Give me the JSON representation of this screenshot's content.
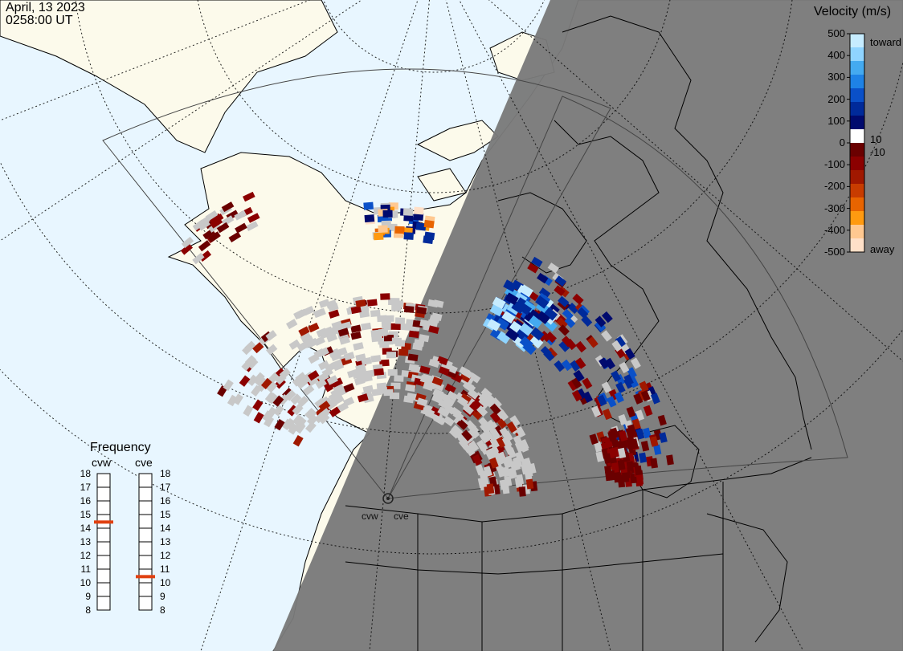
{
  "timestamp": {
    "date": "April, 13 2023",
    "time": "0258:00 UT"
  },
  "colorbar": {
    "title": "Velocity (m/s)",
    "tick_labels": [
      "500",
      "400",
      "300",
      "200",
      "100",
      "0",
      "-100",
      "-200",
      "-300",
      "-400",
      "-500"
    ],
    "inner_labels": {
      "pos": "10",
      "neg": "-10"
    },
    "end_labels": {
      "top": "toward",
      "bottom": "away"
    },
    "colors": [
      "#c6ecff",
      "#8fd4ff",
      "#44aaf0",
      "#1e82e6",
      "#0a50c8",
      "#002a9a",
      "#000a6e",
      "#ffffff",
      "#6a0000",
      "#8b0000",
      "#a01800",
      "#c83c00",
      "#e86400",
      "#ff9a10",
      "#ffc890",
      "#ffe0c8"
    ],
    "ground_scatter_color": "#c8c8c8"
  },
  "frequency": {
    "title": "Frequency",
    "radars": [
      {
        "name": "cvw",
        "freq_mhz": 15
      },
      {
        "name": "cve",
        "freq_mhz": 11
      }
    ],
    "scale": [
      "18",
      "17",
      "16",
      "15",
      "14",
      "13",
      "12",
      "11",
      "10",
      "9",
      "8"
    ],
    "marker_color": "#e04010"
  },
  "sites": [
    {
      "name": "cvw"
    },
    {
      "name": "cve"
    }
  ],
  "map": {
    "ocean_color": "#e8f6ff",
    "land_color": "#fcfaeb",
    "night_color": "#7a7a7a"
  }
}
